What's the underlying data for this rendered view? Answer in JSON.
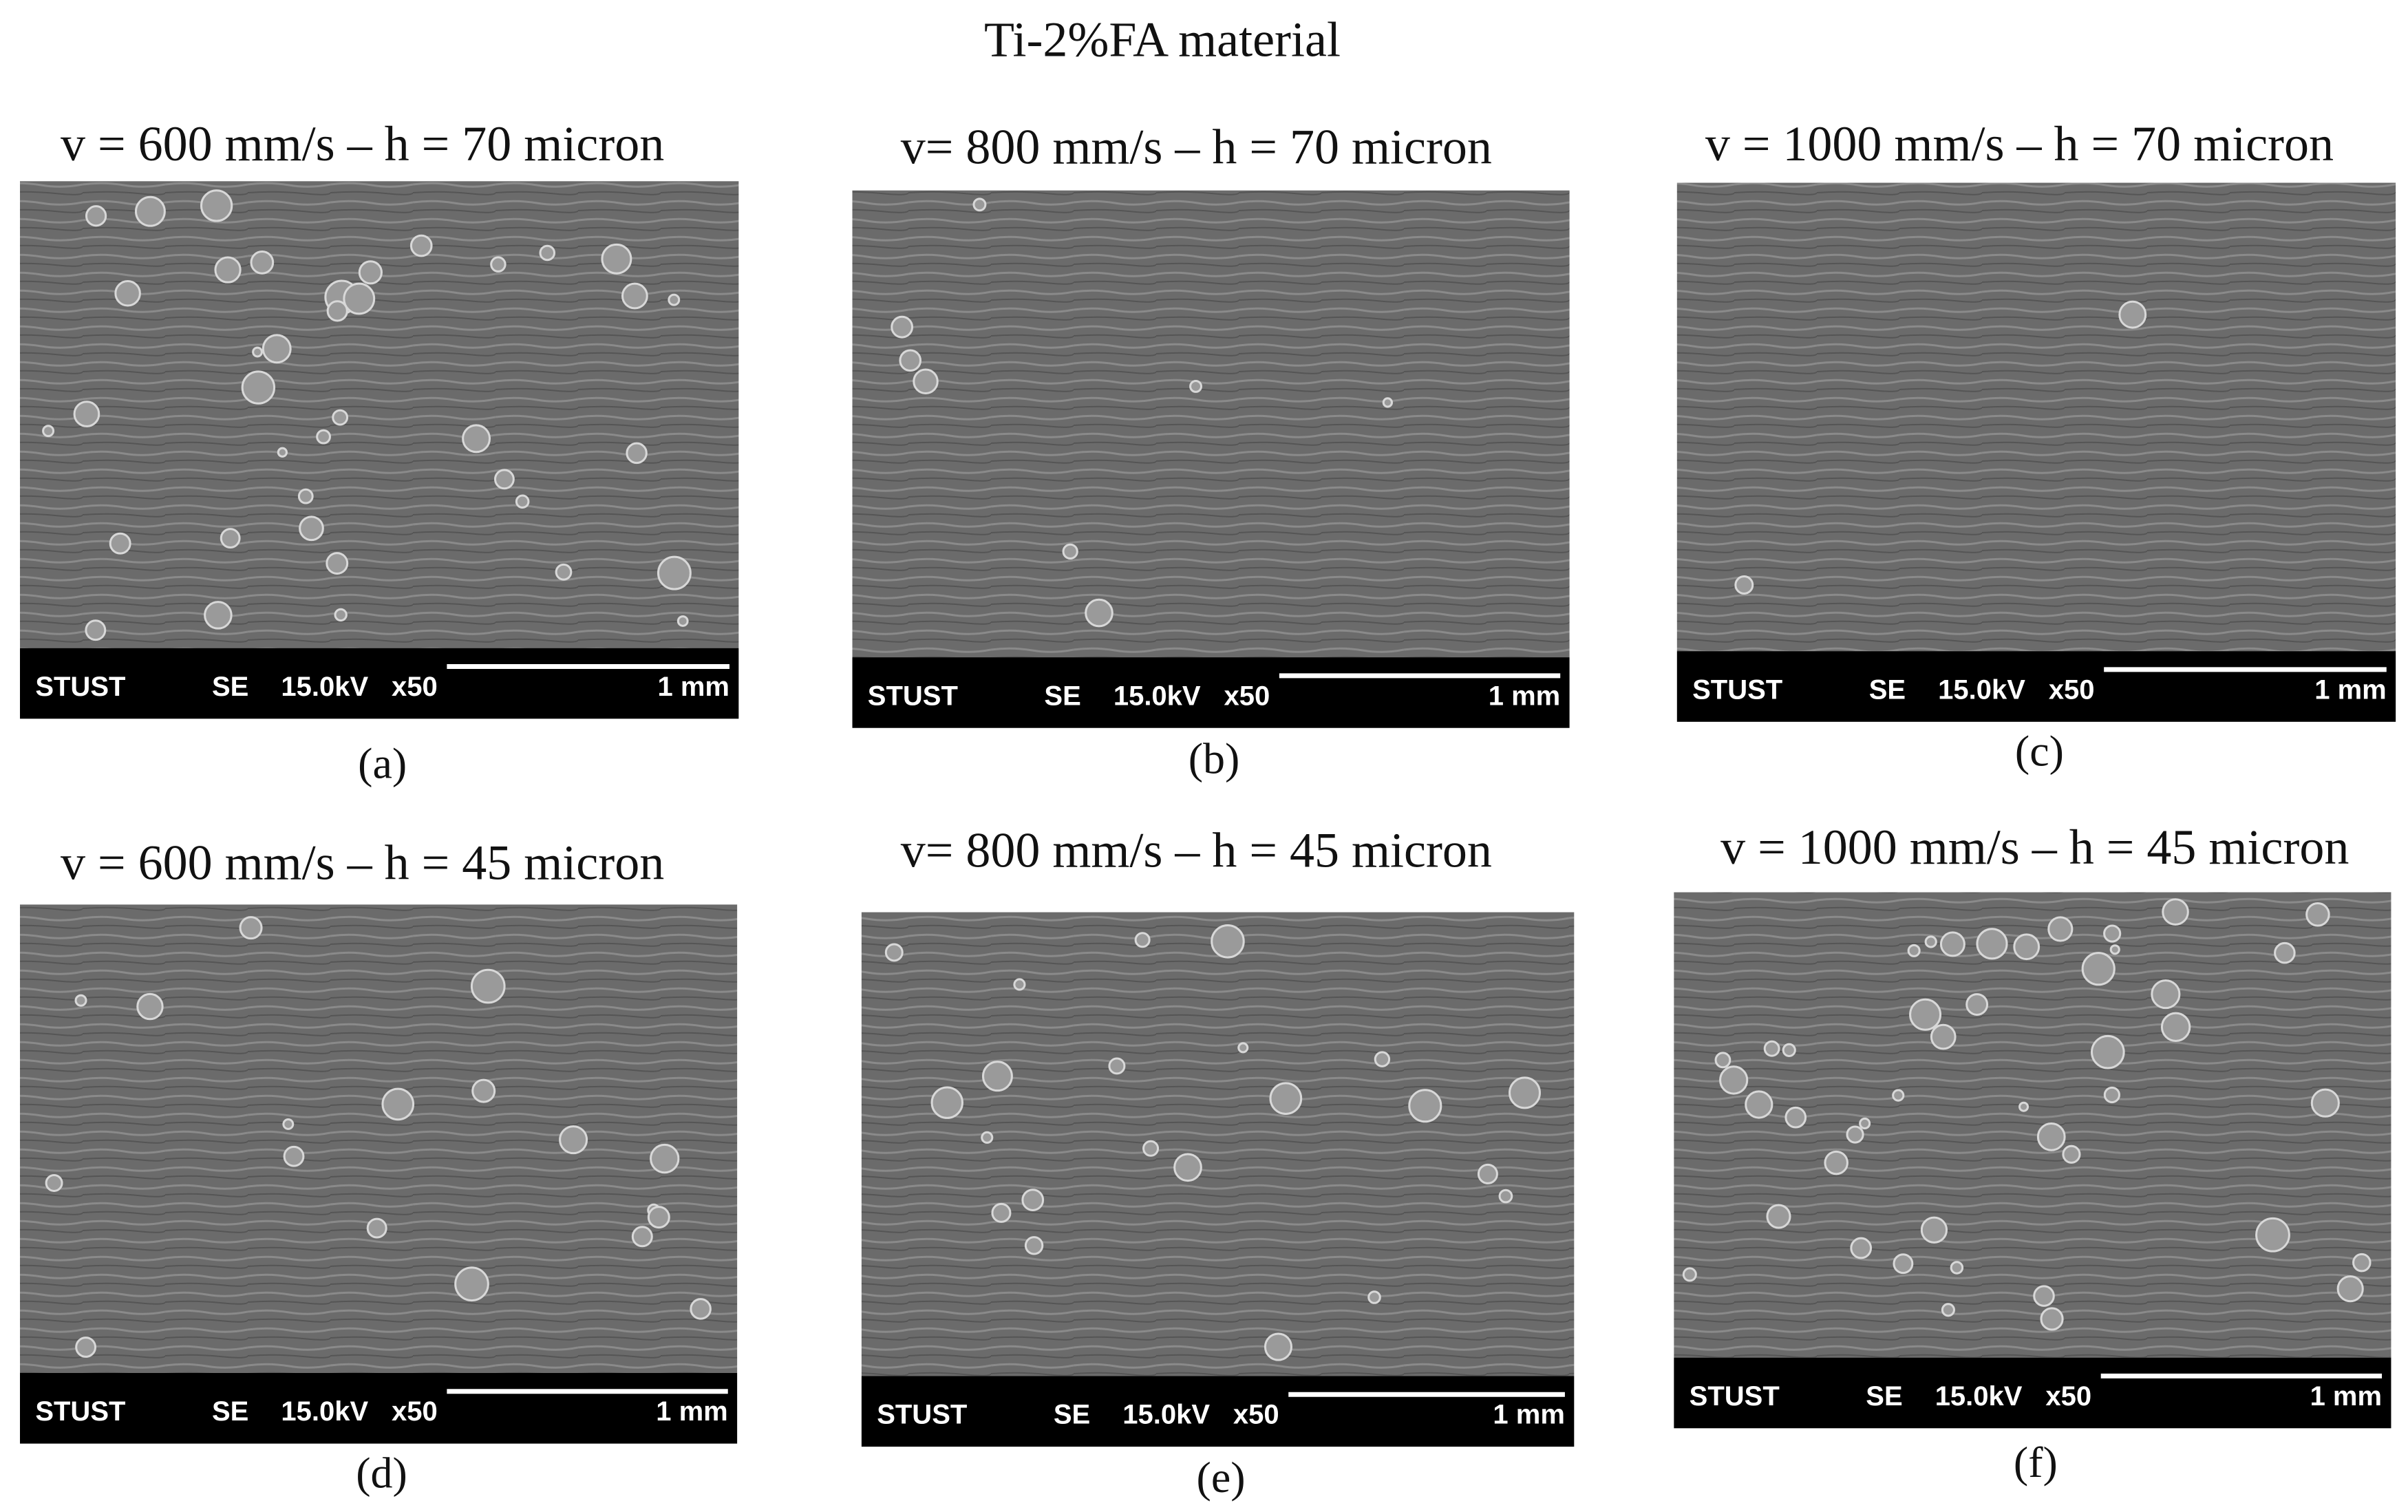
{
  "title": "Ti-2%FA material",
  "panels": [
    {
      "heading": "v = 600 mm/s – h = 70 micron",
      "caption": "(a)",
      "info_bar": {
        "operator": "STUST",
        "mode": "SE",
        "voltage": "15.0kV",
        "magnification": "x50",
        "scale": "1 mm"
      }
    },
    {
      "heading": "v= 800 mm/s – h = 70 micron",
      "caption": "(b)",
      "info_bar": {
        "operator": "STUST",
        "mode": "SE",
        "voltage": "15.0kV",
        "magnification": "x50",
        "scale": "1 mm"
      }
    },
    {
      "heading": "v = 1000 mm/s – h = 70 micron",
      "caption": "(c)",
      "info_bar": {
        "operator": "STUST",
        "mode": "SE",
        "voltage": "15.0kV",
        "magnification": "x50",
        "scale": "1 mm"
      }
    },
    {
      "heading": "v = 600 mm/s – h = 45 micron",
      "caption": "(d)",
      "info_bar": {
        "operator": "STUST",
        "mode": "SE",
        "voltage": "15.0kV",
        "magnification": "x50",
        "scale": "1 mm"
      }
    },
    {
      "heading": "v= 800 mm/s – h = 45 micron",
      "caption": "(e)",
      "info_bar": {
        "operator": "STUST",
        "mode": "SE",
        "voltage": "15.0kV",
        "magnification": "x50",
        "scale": "1 mm"
      }
    },
    {
      "heading": "v = 1000 mm/s – h = 45 micron",
      "caption": "(f)",
      "info_bar": {
        "operator": "STUST",
        "mode": "SE",
        "voltage": "15.0kV",
        "magnification": "x50",
        "scale": "1 mm"
      }
    }
  ]
}
